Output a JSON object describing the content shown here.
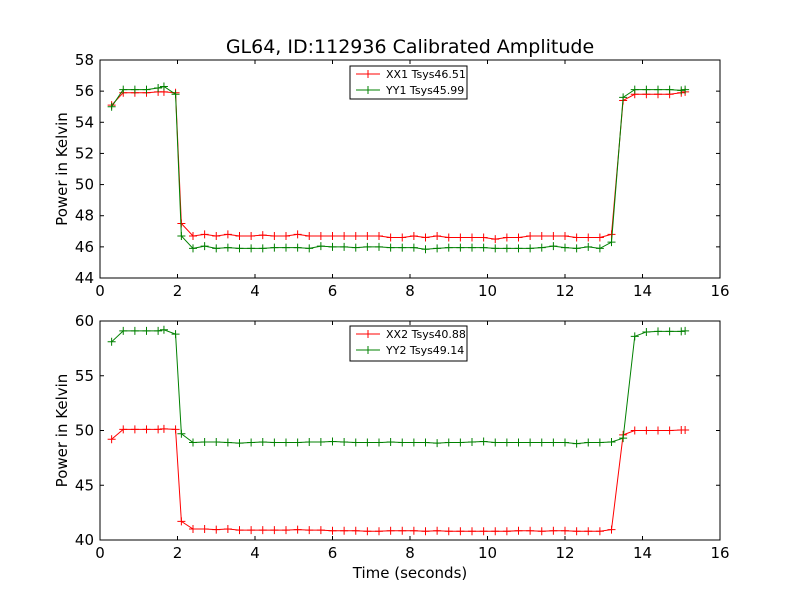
{
  "figure_title": "GL64, ID:112936 Calibrated Amplitude",
  "chart_data": [
    {
      "type": "line",
      "title": "GL64, ID:112936 Calibrated Amplitude",
      "xlabel": "",
      "ylabel": "Power in Kelvin",
      "xlim": [
        0,
        16
      ],
      "ylim": [
        44,
        58
      ],
      "xticks": [
        0,
        2,
        4,
        6,
        8,
        10,
        12,
        14,
        16
      ],
      "yticks": [
        44,
        46,
        48,
        50,
        52,
        54,
        56,
        58
      ],
      "grid": false,
      "legend_position": "top-center",
      "x": [
        0.3,
        0.6,
        0.9,
        1.2,
        1.5,
        1.65,
        1.95,
        2.1,
        2.4,
        2.7,
        3.0,
        3.3,
        3.6,
        3.9,
        4.2,
        4.5,
        4.8,
        5.1,
        5.4,
        5.7,
        6.0,
        6.3,
        6.6,
        6.9,
        7.2,
        7.5,
        7.8,
        8.1,
        8.4,
        8.7,
        9.0,
        9.3,
        9.6,
        9.9,
        10.2,
        10.5,
        10.8,
        11.1,
        11.4,
        11.7,
        12.0,
        12.3,
        12.6,
        12.9,
        13.2,
        13.5,
        13.8,
        14.1,
        14.4,
        14.7,
        15.0,
        15.1
      ],
      "series": [
        {
          "name": "XX1 Tsys46.51",
          "color": "#ff0000",
          "values": [
            55.1,
            55.9,
            55.9,
            55.9,
            55.95,
            55.95,
            55.9,
            47.5,
            46.7,
            46.8,
            46.7,
            46.8,
            46.7,
            46.7,
            46.75,
            46.7,
            46.7,
            46.8,
            46.7,
            46.7,
            46.7,
            46.7,
            46.7,
            46.7,
            46.7,
            46.6,
            46.6,
            46.7,
            46.6,
            46.7,
            46.6,
            46.6,
            46.6,
            46.6,
            46.5,
            46.6,
            46.6,
            46.7,
            46.7,
            46.7,
            46.7,
            46.6,
            46.6,
            46.6,
            46.8,
            55.4,
            55.8,
            55.8,
            55.8,
            55.8,
            55.9,
            55.95
          ]
        },
        {
          "name": "YY1 Tsys45.99",
          "color": "#008000",
          "values": [
            55.0,
            56.1,
            56.1,
            56.1,
            56.2,
            56.3,
            55.8,
            46.7,
            45.9,
            46.05,
            45.9,
            45.95,
            45.9,
            45.9,
            45.9,
            45.95,
            45.95,
            45.95,
            45.9,
            46.05,
            46.0,
            46.0,
            45.95,
            46.0,
            46.0,
            45.95,
            45.95,
            45.95,
            45.85,
            45.9,
            45.95,
            45.95,
            45.95,
            45.95,
            45.9,
            45.9,
            45.9,
            45.9,
            45.95,
            46.05,
            45.95,
            45.9,
            46.0,
            45.9,
            46.3,
            55.6,
            56.1,
            56.1,
            56.1,
            56.1,
            56.05,
            56.1
          ]
        }
      ]
    },
    {
      "type": "line",
      "title": "",
      "xlabel": "Time (seconds)",
      "ylabel": "Power in Kelvin",
      "xlim": [
        0,
        16
      ],
      "ylim": [
        40,
        60
      ],
      "xticks": [
        0,
        2,
        4,
        6,
        8,
        10,
        12,
        14,
        16
      ],
      "yticks": [
        40,
        45,
        50,
        55,
        60
      ],
      "grid": false,
      "legend_position": "top-center",
      "x": [
        0.3,
        0.6,
        0.9,
        1.2,
        1.5,
        1.65,
        1.95,
        2.1,
        2.4,
        2.7,
        3.0,
        3.3,
        3.6,
        3.9,
        4.2,
        4.5,
        4.8,
        5.1,
        5.4,
        5.7,
        6.0,
        6.3,
        6.6,
        6.9,
        7.2,
        7.5,
        7.8,
        8.1,
        8.4,
        8.7,
        9.0,
        9.3,
        9.6,
        9.9,
        10.2,
        10.5,
        10.8,
        11.1,
        11.4,
        11.7,
        12.0,
        12.3,
        12.6,
        12.9,
        13.2,
        13.5,
        13.8,
        14.1,
        14.4,
        14.7,
        15.0,
        15.1
      ],
      "series": [
        {
          "name": "XX2 Tsys40.88",
          "color": "#ff0000",
          "values": [
            49.2,
            50.1,
            50.1,
            50.1,
            50.1,
            50.15,
            50.1,
            41.7,
            41.0,
            41.0,
            40.95,
            41.0,
            40.9,
            40.9,
            40.9,
            40.9,
            40.9,
            40.95,
            40.9,
            40.9,
            40.85,
            40.85,
            40.85,
            40.8,
            40.8,
            40.85,
            40.85,
            40.85,
            40.8,
            40.85,
            40.8,
            40.8,
            40.8,
            40.8,
            40.8,
            40.8,
            40.85,
            40.85,
            40.8,
            40.85,
            40.85,
            40.8,
            40.8,
            40.8,
            40.95,
            49.6,
            50.0,
            50.0,
            50.0,
            50.0,
            50.05,
            50.05
          ]
        },
        {
          "name": "YY2 Tsys49.14",
          "color": "#008000",
          "values": [
            58.1,
            59.1,
            59.1,
            59.1,
            59.1,
            59.2,
            58.8,
            49.7,
            48.9,
            48.95,
            48.95,
            48.9,
            48.85,
            48.9,
            48.95,
            48.9,
            48.9,
            48.9,
            48.95,
            48.95,
            49.0,
            48.95,
            48.9,
            48.9,
            48.9,
            48.95,
            48.9,
            48.9,
            48.9,
            48.85,
            48.9,
            48.9,
            48.95,
            49.0,
            48.9,
            48.9,
            48.9,
            48.9,
            48.9,
            48.9,
            48.9,
            48.8,
            48.9,
            48.9,
            48.95,
            49.3,
            58.6,
            59.0,
            59.05,
            59.05,
            59.05,
            59.1
          ]
        }
      ]
    }
  ]
}
